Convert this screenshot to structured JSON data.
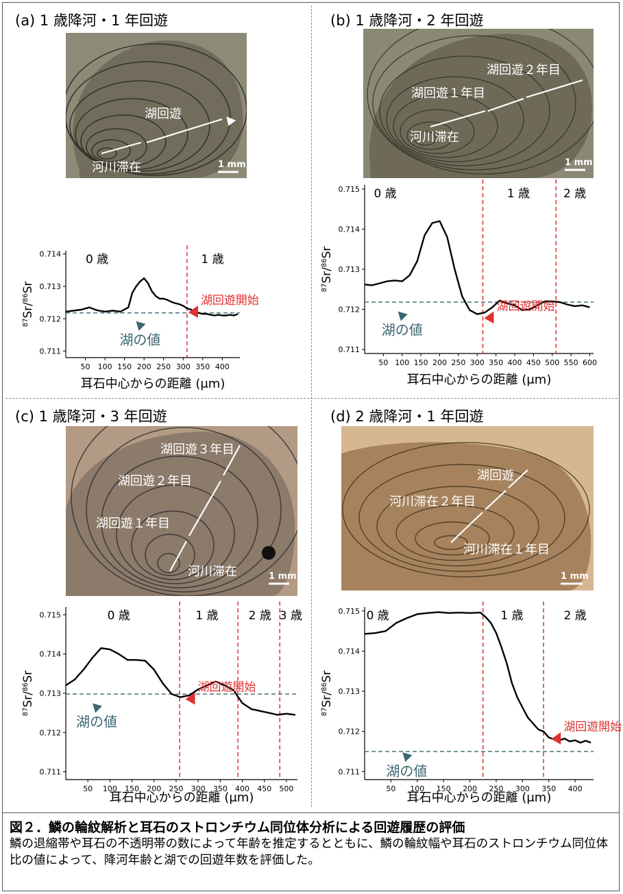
{
  "panels": {
    "a": {
      "title": "(a) 1 歳降河・1 年回遊",
      "photo_labels": [
        "湖回遊",
        "河川滞在"
      ],
      "scale_bar": "1 mm"
    },
    "b": {
      "title": "(b) 1 歳降河・2 年回遊",
      "photo_labels": [
        "湖回遊２年目",
        "湖回遊１年目",
        "河川滞在"
      ],
      "scale_bar": "1 mm"
    },
    "c": {
      "title": "(c) 1 歳降河・3 年回遊",
      "photo_labels": [
        "湖回遊３年目",
        "湖回遊２年目",
        "湖回遊１年目",
        "河川滞在"
      ],
      "scale_bar": "1 mm"
    },
    "d": {
      "title": "(d) 2 歳降河・1 年回遊",
      "photo_labels": [
        "湖回遊",
        "河川滞在２年目",
        "河川滞在１年目"
      ],
      "scale_bar": "1 mm"
    }
  },
  "colors": {
    "lake_line": "#4a6e7a",
    "boundary": "#e03030",
    "marker_lake": "#3d6672",
    "marker_start": "#e03030",
    "curve": "#000000"
  },
  "chart_data": [
    {
      "id": "a",
      "type": "line",
      "xlabel": "耳石中心からの距離 (μm)",
      "ylabel": "87Sr/86Sr",
      "xlim": [
        0,
        445
      ],
      "ylim": [
        0.7108,
        0.7141
      ],
      "xticks": [
        50,
        100,
        150,
        200,
        250,
        300,
        350,
        400
      ],
      "yticks": [
        0.711,
        0.712,
        0.713,
        0.714
      ],
      "ytick_labels": [
        "0.711",
        "0.712",
        "0.713",
        "0.714"
      ],
      "lake_value": 0.71218,
      "boundaries": [
        310
      ],
      "age_labels": [
        {
          "text": "0 歳",
          "x": 80
        },
        {
          "text": "1 歳",
          "x": 375
        }
      ],
      "annotations": [
        {
          "text": "湖回遊開始",
          "x": 310,
          "y": 0.71228,
          "kind": "start"
        },
        {
          "text": "湖の値",
          "x": 190,
          "y": 0.71205,
          "kind": "lake"
        }
      ],
      "series": [
        {
          "x": [
            0,
            20,
            40,
            60,
            80,
            100,
            120,
            140,
            160,
            170,
            180,
            190,
            200,
            210,
            220,
            230,
            240,
            250,
            260,
            270,
            280,
            290,
            300,
            310,
            320,
            330,
            340,
            350,
            360,
            370,
            380,
            390,
            400,
            410,
            420,
            430,
            440
          ],
          "y": [
            0.71222,
            0.71225,
            0.71228,
            0.71235,
            0.71226,
            0.71222,
            0.71225,
            0.71222,
            0.71235,
            0.7128,
            0.713,
            0.71315,
            0.71325,
            0.7131,
            0.71285,
            0.7127,
            0.71262,
            0.71262,
            0.71258,
            0.71252,
            0.71248,
            0.71245,
            0.7124,
            0.71232,
            0.71228,
            0.71222,
            0.71218,
            0.71215,
            0.71215,
            0.71212,
            0.7121,
            0.71212,
            0.7121,
            0.7121,
            0.71212,
            0.7121,
            0.71215
          ]
        }
      ]
    },
    {
      "id": "b",
      "type": "line",
      "xlabel": "耳石中心からの距離 (μm)",
      "ylabel": "87Sr/86Sr",
      "xlim": [
        0,
        610
      ],
      "ylim": [
        0.7109,
        0.7151
      ],
      "xticks": [
        50,
        100,
        150,
        200,
        250,
        300,
        350,
        400,
        450,
        500,
        550,
        600
      ],
      "yticks": [
        0.711,
        0.712,
        0.713,
        0.714,
        0.715
      ],
      "ytick_labels": [
        "0.711",
        "0.712",
        "0.713",
        "0.714",
        "0.715"
      ],
      "lake_value": 0.71218,
      "boundaries": [
        315,
        510
      ],
      "age_labels": [
        {
          "text": "0 歳",
          "x": 55
        },
        {
          "text": "1 歳",
          "x": 410
        },
        {
          "text": "2 歳",
          "x": 560
        }
      ],
      "annotations": [
        {
          "text": "湖回遊開始",
          "x": 315,
          "y": 0.71185,
          "kind": "start"
        },
        {
          "text": "湖の値",
          "x": 100,
          "y": 0.71205,
          "kind": "lake"
        }
      ],
      "series": [
        {
          "x": [
            0,
            20,
            40,
            60,
            80,
            100,
            120,
            140,
            160,
            180,
            200,
            220,
            240,
            260,
            280,
            300,
            320,
            340,
            360,
            380,
            400,
            420,
            440,
            460,
            480,
            500,
            520,
            540,
            560,
            580,
            600
          ],
          "y": [
            0.71262,
            0.7126,
            0.71265,
            0.7127,
            0.71272,
            0.7127,
            0.71285,
            0.7132,
            0.71385,
            0.71415,
            0.7142,
            0.7138,
            0.713,
            0.71232,
            0.71198,
            0.71188,
            0.71192,
            0.71205,
            0.71222,
            0.71215,
            0.7121,
            0.71198,
            0.712,
            0.7121,
            0.7122,
            0.7122,
            0.71218,
            0.71212,
            0.71208,
            0.7121,
            0.71205
          ]
        }
      ]
    },
    {
      "id": "c",
      "type": "line",
      "xlabel": "耳石中心からの距離 (μm)",
      "ylabel": "87Sr/86Sr",
      "xlim": [
        0,
        525
      ],
      "ylim": [
        0.7108,
        0.7152
      ],
      "xticks": [
        50,
        100,
        150,
        200,
        250,
        300,
        350,
        400,
        450,
        500
      ],
      "yticks": [
        0.711,
        0.712,
        0.713,
        0.714,
        0.715
      ],
      "ytick_labels": [
        "0.711",
        "0.712",
        "0.713",
        "0.714",
        "0.715"
      ],
      "lake_value": 0.71298,
      "boundaries": [
        258,
        390,
        485
      ],
      "age_labels": [
        {
          "text": "0 歳",
          "x": 120
        },
        {
          "text": "1 歳",
          "x": 320
        },
        {
          "text": "2 歳",
          "x": 440
        },
        {
          "text": "3 歳",
          "x": 510
        }
      ],
      "annotations": [
        {
          "text": "湖回遊開始",
          "x": 268,
          "y": 0.71292,
          "kind": "start"
        },
        {
          "text": "湖の値",
          "x": 70,
          "y": 0.71285,
          "kind": "lake"
        }
      ],
      "series": [
        {
          "x": [
            0,
            20,
            40,
            60,
            80,
            100,
            120,
            140,
            160,
            180,
            200,
            220,
            240,
            260,
            280,
            300,
            320,
            340,
            360,
            380,
            400,
            420,
            440,
            460,
            480,
            500,
            520
          ],
          "y": [
            0.7132,
            0.71335,
            0.7136,
            0.7139,
            0.71415,
            0.71412,
            0.714,
            0.71385,
            0.71385,
            0.71383,
            0.7136,
            0.71325,
            0.71298,
            0.7129,
            0.71295,
            0.7131,
            0.7132,
            0.7133,
            0.7132,
            0.71308,
            0.71275,
            0.7126,
            0.71255,
            0.7125,
            0.71245,
            0.71248,
            0.71245
          ]
        }
      ]
    },
    {
      "id": "d",
      "type": "line",
      "xlabel": "耳石中心からの距離 (μm)",
      "ylabel": "87Sr/86Sr",
      "xlim": [
        0,
        435
      ],
      "ylim": [
        0.7108,
        0.7151
      ],
      "xticks": [
        50,
        100,
        150,
        200,
        250,
        300,
        350,
        400
      ],
      "yticks": [
        0.711,
        0.712,
        0.713,
        0.714,
        0.715
      ],
      "ytick_labels": [
        "0.711",
        "0.712",
        "0.713",
        "0.714",
        "0.715"
      ],
      "lake_value": 0.7115,
      "boundaries": [
        225,
        340
      ],
      "age_labels": [
        {
          "text": "0 歳",
          "x": 25
        },
        {
          "text": "1 歳",
          "x": 280
        },
        {
          "text": "2 歳",
          "x": 400
        }
      ],
      "annotations": [
        {
          "text": "湖回遊開始",
          "x": 352,
          "y": 0.71188,
          "kind": "start"
        },
        {
          "text": "湖の値",
          "x": 80,
          "y": 0.71158,
          "kind": "lake"
        }
      ],
      "series": [
        {
          "x": [
            0,
            20,
            40,
            60,
            80,
            100,
            120,
            140,
            160,
            180,
            200,
            220,
            230,
            240,
            250,
            260,
            270,
            280,
            290,
            300,
            310,
            320,
            330,
            340,
            350,
            360,
            370,
            380,
            390,
            400,
            410,
            420,
            430
          ],
          "y": [
            0.71443,
            0.71445,
            0.7145,
            0.7147,
            0.71482,
            0.71492,
            0.71495,
            0.71497,
            0.71495,
            0.71496,
            0.71495,
            0.71496,
            0.71485,
            0.7147,
            0.71445,
            0.7141,
            0.7137,
            0.7132,
            0.71285,
            0.7126,
            0.71235,
            0.7122,
            0.71205,
            0.712,
            0.71185,
            0.7118,
            0.71178,
            0.71182,
            0.71175,
            0.71178,
            0.71172,
            0.71177,
            0.71172
          ]
        }
      ]
    }
  ],
  "caption": {
    "title": "図２．鱗の輪紋解析と耳石のストロンチウム同位体分析による回遊履歴の評価",
    "body": "鱗の退縮帯や耳石の不透明帯の数によって年齢を推定するとともに、鱗の輪紋幅や耳石のストロンチウム同位体比の値によって、降河年齢と湖での回遊年数を評価した。"
  }
}
